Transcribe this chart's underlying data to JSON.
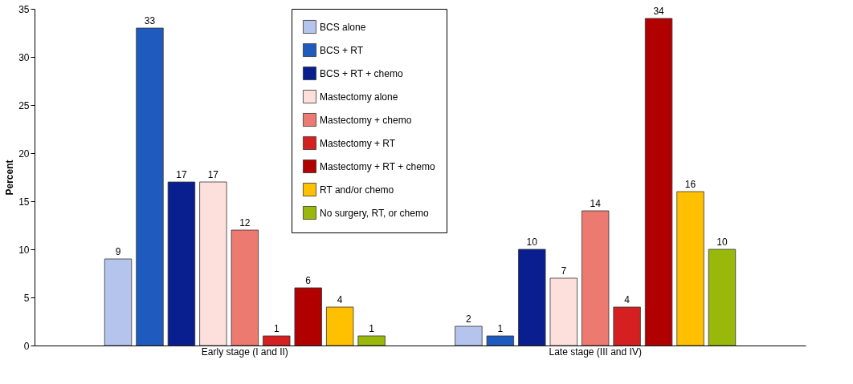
{
  "chart_data": {
    "type": "bar",
    "ylabel": "Percent",
    "categories": [
      "Early stage (I and II)",
      "Late stage (III and IV)"
    ],
    "series": [
      {
        "name": "BCS alone",
        "color": "#b4c4ec",
        "values": [
          9,
          2
        ]
      },
      {
        "name": "BCS + RT",
        "color": "#1f5bbf",
        "values": [
          33,
          1
        ]
      },
      {
        "name": "BCS + RT + chemo",
        "color": "#0a1f8f",
        "values": [
          17,
          10
        ]
      },
      {
        "name": "Mastectomy alone",
        "color": "#fde0dc",
        "values": [
          17,
          7
        ]
      },
      {
        "name": "Mastectomy + chemo",
        "color": "#ec7a70",
        "values": [
          12,
          14
        ]
      },
      {
        "name": "Mastectomy + RT",
        "color": "#d42020",
        "values": [
          1,
          4
        ]
      },
      {
        "name": "Mastectomy + RT + chemo",
        "color": "#b00000",
        "values": [
          6,
          34
        ]
      },
      {
        "name": "RT and/or chemo",
        "color": "#ffc000",
        "values": [
          4,
          16
        ]
      },
      {
        "name": "No surgery, RT, or chemo",
        "color": "#9ab80a",
        "values": [
          1,
          10
        ]
      }
    ],
    "ylim": [
      0,
      35
    ],
    "yticks": [
      0,
      5,
      10,
      15,
      20,
      25,
      30,
      35
    ],
    "grid": false,
    "legend": "top",
    "data_labels": true
  }
}
